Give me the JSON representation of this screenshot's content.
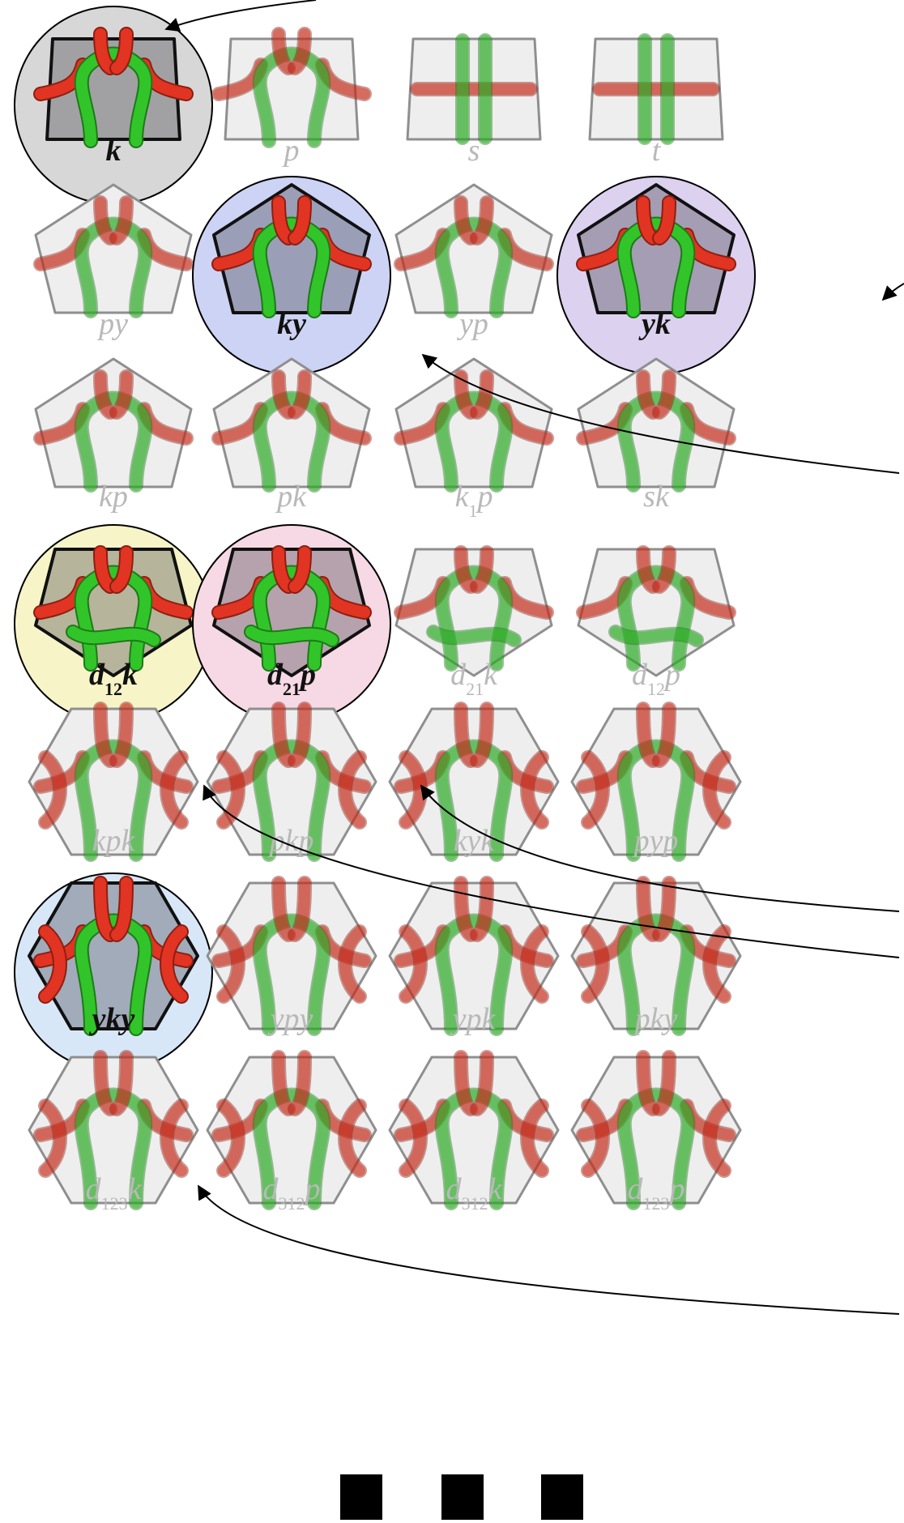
{
  "colors": {
    "yarn_red": "#e23422",
    "yarn_red_dark": "#8d1f12",
    "yarn_green": "#31c52a",
    "yarn_green_dark": "#1e7a18",
    "tile_faded_fill": "#eeeeee",
    "tile_faded_edge": "#8f8f8f",
    "label_faded": "#b9b9b9",
    "label_highlight": "#111111",
    "highlight_gray": "#d7d7d7",
    "highlight_blue": "#cdd3f4",
    "highlight_purple": "#dcd1ef",
    "highlight_yellow": "#f7f5c8",
    "highlight_pink": "#f6d9e4",
    "highlight_lightblue": "#d8e7f7",
    "legend_square": "#000000"
  },
  "rows": [
    {
      "shape": "square",
      "tiles": [
        {
          "label": "k",
          "sub": "",
          "suffix": "",
          "highlight": "gray"
        },
        {
          "label": "p",
          "sub": "",
          "suffix": "",
          "highlight": ""
        },
        {
          "label": "s",
          "sub": "",
          "suffix": "",
          "highlight": ""
        },
        {
          "label": "t",
          "sub": "",
          "suffix": "",
          "highlight": ""
        }
      ]
    },
    {
      "shape": "pentagon",
      "tiles": [
        {
          "label": "py",
          "sub": "",
          "suffix": "",
          "highlight": ""
        },
        {
          "label": "ky",
          "sub": "",
          "suffix": "",
          "highlight": "blue"
        },
        {
          "label": "yp",
          "sub": "",
          "suffix": "",
          "highlight": ""
        },
        {
          "label": "yk",
          "sub": "",
          "suffix": "",
          "highlight": "purple"
        }
      ]
    },
    {
      "shape": "pentagon",
      "tiles": [
        {
          "label": "kp",
          "sub": "",
          "suffix": "",
          "highlight": ""
        },
        {
          "label": "pk",
          "sub": "",
          "suffix": "",
          "highlight": ""
        },
        {
          "label": "k",
          "sub": "1",
          "suffix": "p",
          "highlight": ""
        },
        {
          "label": "sk",
          "sub": "",
          "suffix": "",
          "highlight": ""
        }
      ]
    },
    {
      "shape": "pentagon-inv",
      "tiles": [
        {
          "label": "d",
          "sub": "12",
          "suffix": "k",
          "highlight": "yellow"
        },
        {
          "label": "d",
          "sub": "21",
          "suffix": "p",
          "highlight": "pink"
        },
        {
          "label": "d",
          "sub": "21",
          "suffix": "k",
          "highlight": ""
        },
        {
          "label": "d",
          "sub": "12",
          "suffix": "p",
          "highlight": ""
        }
      ]
    },
    {
      "shape": "hexagon",
      "tiles": [
        {
          "label": "kpk",
          "sub": "",
          "suffix": "",
          "highlight": ""
        },
        {
          "label": "pkp",
          "sub": "",
          "suffix": "",
          "highlight": ""
        },
        {
          "label": "kyk",
          "sub": "",
          "suffix": "",
          "highlight": ""
        },
        {
          "label": "pyp",
          "sub": "",
          "suffix": "",
          "highlight": ""
        }
      ]
    },
    {
      "shape": "hexagon",
      "tiles": [
        {
          "label": "yky",
          "sub": "",
          "suffix": "",
          "highlight": "lightblue"
        },
        {
          "label": "ypy",
          "sub": "",
          "suffix": "",
          "highlight": ""
        },
        {
          "label": "ypk",
          "sub": "",
          "suffix": "",
          "highlight": ""
        },
        {
          "label": "pky",
          "sub": "",
          "suffix": "",
          "highlight": ""
        }
      ]
    },
    {
      "shape": "hexagon",
      "tiles": [
        {
          "label": "d",
          "sub": "123",
          "suffix": "k",
          "highlight": ""
        },
        {
          "label": "d",
          "sub": "312",
          "suffix": "p",
          "highlight": ""
        },
        {
          "label": "d",
          "sub": "312",
          "suffix": "k",
          "highlight": ""
        },
        {
          "label": "d",
          "sub": "123",
          "suffix": "p",
          "highlight": ""
        }
      ]
    }
  ],
  "legend_squares": 3
}
